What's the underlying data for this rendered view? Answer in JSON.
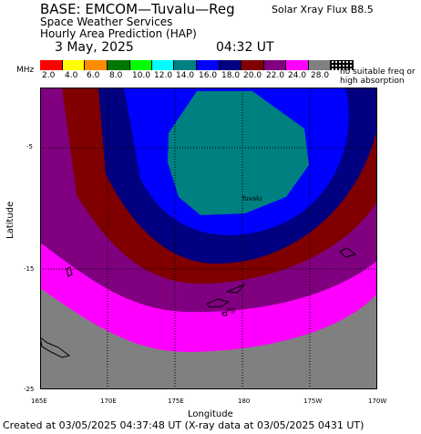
{
  "header": {
    "title": "BASE: EMCOM—Tuvalu—Reg",
    "subtitle1": "Space Weather Services",
    "subtitle2": "Hourly Area Prediction (HAP)",
    "date": "3 May, 2025",
    "time": "04:32 UT",
    "flux": "Solar Xray Flux B8.5"
  },
  "legend": {
    "unit": "MHz",
    "ticks": [
      "2.0",
      "4.0",
      "6.0",
      "8.0",
      "10.0",
      "12.0",
      "14.0",
      "16.0",
      "18.0",
      "20.0",
      "22.0",
      "24.0",
      "28.0"
    ],
    "colors": [
      "#ff0000",
      "#ffff00",
      "#ff8c00",
      "#007800",
      "#00ff00",
      "#00ffff",
      "#008080",
      "#0000ff",
      "#000080",
      "#800000",
      "#800080",
      "#ff00ff",
      "#808080"
    ],
    "no_suitable": "no suitable freq or high absorption"
  },
  "map": {
    "lat_labels": [
      "-5",
      "-15",
      "-25"
    ],
    "lon_labels": [
      "165E",
      "170E",
      "175E",
      "180",
      "175W",
      "170W"
    ],
    "place_labels": [
      "Tuvalu",
      "Fiji"
    ],
    "xlabel": "Longitude",
    "ylabel": "Latitude"
  },
  "footer": "Created at 03/05/2025 04:37:48 UT (X-ray data at 03/05/2025 0431 UT)"
}
